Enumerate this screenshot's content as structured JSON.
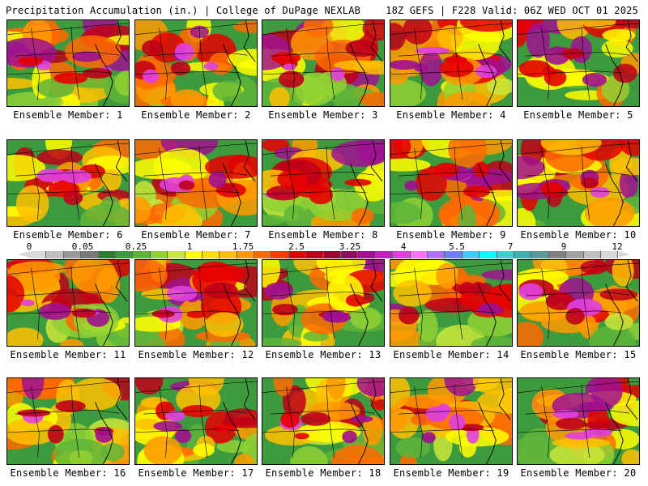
{
  "header": {
    "title_left": "Precipitation Accumulation (in.) | College of DuPage NEXLAB",
    "title_right": "18Z GEFS | F228 Valid: 06Z WED OCT 01 2025"
  },
  "colorbar": {
    "labels": [
      "0",
      "0.05",
      "0.25",
      "1",
      "1.75",
      "2.5",
      "3.25",
      "4",
      "5.5",
      "7",
      "9",
      "12"
    ],
    "colors": [
      "#d9d9d9",
      "#bfbfbf",
      "#9a9a9a",
      "#7a7a7a",
      "#2e7d32",
      "#3d9a3d",
      "#5fb53a",
      "#8fd134",
      "#c9e63a",
      "#ffff00",
      "#ffe000",
      "#ffc000",
      "#ff9a00",
      "#ff6a00",
      "#ff3a00",
      "#e60000",
      "#c00018",
      "#a00030",
      "#8a1060",
      "#a01090",
      "#c020c0",
      "#e040e0",
      "#ff70ff",
      "#b070ff",
      "#7080ff",
      "#40c8ff",
      "#00ffff",
      "#40d0d0",
      "#40b0b0",
      "#5a9a9a",
      "#808080",
      "#a0a0a0",
      "#c0c0c0",
      "#d8d8d8"
    ]
  },
  "members": [
    "Ensemble Member: 1",
    "Ensemble Member: 2",
    "Ensemble Member: 3",
    "Ensemble Member: 4",
    "Ensemble Member: 5",
    "Ensemble Member: 6",
    "Ensemble Member: 7",
    "Ensemble Member: 8",
    "Ensemble Member: 9",
    "Ensemble Member: 10",
    "Ensemble Member: 11",
    "Ensemble Member: 12",
    "Ensemble Member: 13",
    "Ensemble Member: 14",
    "Ensemble Member: 15",
    "Ensemble Member: 16",
    "Ensemble Member: 17",
    "Ensemble Member: 18",
    "Ensemble Member: 19",
    "Ensemble Member: 20"
  ]
}
